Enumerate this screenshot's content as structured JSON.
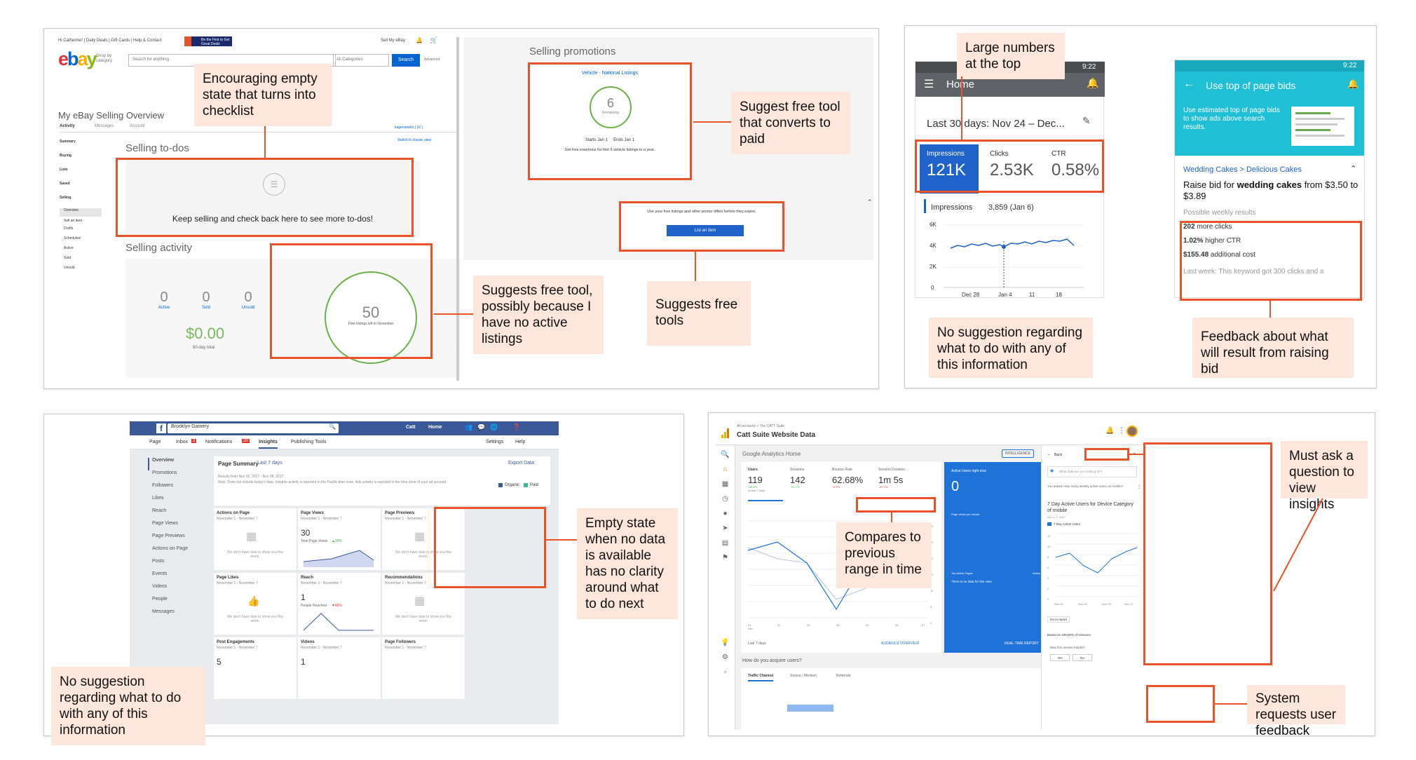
{
  "colors": {
    "accent": "#e8532a",
    "note_bg": "#fde6db",
    "ebay_blue": "#1f62c9",
    "android_grey": "#5f6368",
    "android_teal": "#1fbfd6",
    "fb_blue": "#3b5998",
    "ga_blue": "#1f73d8",
    "positive": "#4caf50",
    "negative": "#e53935"
  },
  "ebay": {
    "topbar": "Hi Catherine!  |  Daily Deals  |  Gift Cards  |  Help & Contact",
    "promo_banner": "Be the First to Get Great Deals",
    "topbar_right": "Sell   My eBay",
    "logo": "ebay",
    "shop_by": "Shop by category",
    "search_placeholder": "Search for anything",
    "category": "All Categories",
    "search_btn": "Search",
    "advanced": "Advanced",
    "page_title": "My eBay Selling Overview",
    "tabs": [
      "Activity",
      "Messages",
      "Account"
    ],
    "user": "kagenoneko ( 32 )",
    "switch": "Switch to classic view",
    "nav": [
      "Summary",
      "Buying",
      "Lists",
      "Saved",
      "Selling",
      "Overview",
      "Sell an item",
      "Drafts",
      "Scheduled",
      "Active",
      "Sold",
      "Unsold"
    ],
    "todos_title": "Selling to-dos",
    "todos_empty": "Keep selling and check back here to see more to-dos!",
    "activity_title": "Selling activity",
    "stats": [
      {
        "value": "0",
        "label": "Active"
      },
      {
        "value": "0",
        "label": "Sold"
      },
      {
        "value": "0",
        "label": "Unsold"
      }
    ],
    "total_value": "$0.00",
    "total_label": "60-day total",
    "free_count": "50",
    "free_label": "Free listings left in November",
    "promo_title": "Selling promotions",
    "promo_link": "Vehicle - National Listings",
    "promo_count": "6",
    "promo_remaining": "Remaining",
    "promo_dates": "Starts Jan 1     Ends Jan 1",
    "promo_desc": "Get free insertions for first 6 vehicle listings in a year.",
    "promo_use": "Use your free listings and other promo offers before they expire.",
    "list_btn": "List an item"
  },
  "android1": {
    "time": "9:22",
    "title": "Home",
    "range": "Last 30 days: Nov 24 – Dec...",
    "impressions_label": "Impressions",
    "impressions_value": "121K",
    "clicks_label": "Clicks",
    "clicks_value": "2.53K",
    "ctr_label": "CTR",
    "ctr_value": "0.58%",
    "legend": "Impressions",
    "legend_value": "3,859 (Jan 6)",
    "y_ticks": [
      "6K",
      "4K",
      "2K",
      "0"
    ],
    "x_ticks": [
      "Dec 28",
      "Jan 4",
      "11",
      "18"
    ]
  },
  "android2": {
    "time": "9:22",
    "title": "Use top of page bids",
    "banner_text": "Use estimated top of page bids to show ads above search results.",
    "breadcrumb": "Wedding Cakes > Delicious Cakes",
    "raise_pre": "Raise bid for ",
    "raise_bold": "wedding cakes",
    "raise_post": " from $3.50 to $3.89",
    "results_label": "Possible weekly results",
    "r1_bold": "202",
    "r1": " more clicks",
    "r2_bold": "1.02%",
    "r2": " higher CTR",
    "r3_bold": "$155.48",
    "r3": " additional cost",
    "last_week": "Last week: This keyword got 300 clicks and a"
  },
  "facebook": {
    "page_name": "Brooklyn Gamery",
    "user": "Catt",
    "home": "Home",
    "tabs": [
      "Page",
      "Inbox",
      "Notifications",
      "Insights",
      "Publishing Tools"
    ],
    "tabs_right": [
      "Settings",
      "Help"
    ],
    "inbox_badge": "3",
    "notif_badge": "20",
    "nav": [
      "Overview",
      "Promotions",
      "Followers",
      "Likes",
      "Reach",
      "Page Views",
      "Page Previews",
      "Actions on Page",
      "Posts",
      "Events",
      "Videos",
      "People",
      "Messages"
    ],
    "summary": "Page Summary",
    "summary_range": "Last 7 days",
    "export": "Export Data",
    "results_note": "Results from Nov 02, 2017 - Nov 08, 2017",
    "results_note2": "Note: Does not include today's data. Insights activity is reported in the Pacific time zone. Ads activity is reported in the time zone of your ad account.",
    "legend": [
      "Organic",
      "Paid"
    ],
    "range": "November 1 - November 7",
    "no_data": "We don't have data to show you this week.",
    "cards": [
      {
        "title": "Actions on Page"
      },
      {
        "title": "Page Views",
        "value": "30",
        "sub": "Total Page Views",
        "delta": "▲30%"
      },
      {
        "title": "Page Previews"
      },
      {
        "title": "Page Likes"
      },
      {
        "title": "Reach",
        "value": "1",
        "sub": "People Reached",
        "delta": "▼86%"
      },
      {
        "title": "Recommendations"
      },
      {
        "title": "Post Engagements",
        "value": "5"
      },
      {
        "title": "Videos",
        "value": "1"
      },
      {
        "title": "Page Followers"
      }
    ]
  },
  "analytics": {
    "breadcrumb": "All accounts > The CATT Suite",
    "property": "Catt Suite Website Data",
    "home_title": "Google Analytics Home",
    "intelligence": "INTELLIGENCE",
    "metrics": [
      {
        "label": "Users",
        "value": "119",
        "delta": "↑36.8%",
        "sub": "vs last 7 days"
      },
      {
        "label": "Sessions",
        "value": "142",
        "delta": "↑32.7%"
      },
      {
        "label": "Bounce Rate",
        "value": "62.68%",
        "delta": "↑9.7%"
      },
      {
        "label": "Session Duration",
        "value": "1m 5s",
        "delta": "↓47.7%"
      }
    ],
    "active_now": "Active Users right now",
    "active_value": "0",
    "per_minute": "Page views per minute",
    "top_pages": "Top Active Pages",
    "top_users": "Active Users",
    "no_data": "There is no data for this view",
    "realtime": "REAL-TIME REPORT",
    "audience": "AUDIENCE OVERVIEW",
    "last7": "Last 7 days",
    "x_ticks": [
      "01 Nov",
      "02",
      "03",
      "04",
      "05",
      "06",
      "07"
    ],
    "y_ticks": [
      "30",
      "25",
      "20",
      "15",
      "10",
      "5",
      "0"
    ],
    "acquire": "How do you acquire users?",
    "acq_tabs": [
      "Traffic Channel",
      "Source / Medium",
      "Referrals"
    ],
    "panel_back": "Back",
    "panel_search": "What data are you looking for?",
    "asked": "You asked: How many weekly active users on mobile?",
    "insight_title": "7 Day Active Users for Device Category of mobile",
    "insight_date": "Nov 1–7, 2017",
    "insight_legend": "7 Day Active Users",
    "insight_y": [
      "12",
      "10",
      "8",
      "6",
      "4",
      "2",
      "0"
    ],
    "insight_x": [
      "Nov 01",
      "Nov 03",
      "Nov 05",
      "Nov 07"
    ],
    "go_report": "Go to report",
    "based_on": "Based on 100.00% of sessions.",
    "helpful": "Was this answer helpful?",
    "yes": "Yes",
    "no": "No"
  },
  "notes": {
    "n1": "Encouraging empty state that turns into checklist",
    "n2": "Suggest free tool that converts to paid",
    "n3": "Suggests free tool, possibly because I have no active listings",
    "n4": "Suggests free tools",
    "n5": "Large numbers at the top",
    "n6": "No suggestion regarding what to do with any of this information",
    "n7": "Feedback about what will result from raising bid",
    "n8": "Empty state when no data is available has no clarity around what to do next",
    "n9": "No suggestion regarding what to do with any of this information",
    "n10": "Compares to previous range in time",
    "n11": "Must ask a question to view insights",
    "n12": "System requests user feedback"
  }
}
